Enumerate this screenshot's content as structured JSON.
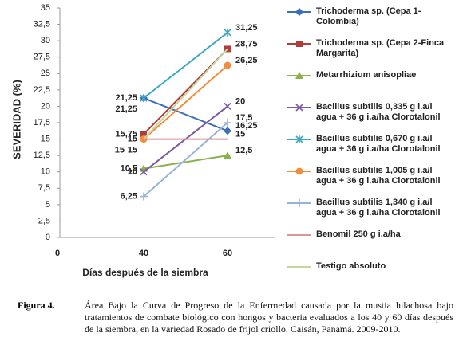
{
  "chart_data": {
    "type": "line",
    "y_label": "SEVERIDAD (%)",
    "x_label": "Días después de la siembra",
    "categories": [
      "0",
      "40",
      "60"
    ],
    "ylim": [
      0,
      35
    ],
    "yticks": [
      0,
      {
        "value": 2.5,
        "label": "2,5"
      },
      5,
      {
        "value": 7.5,
        "label": "7,5"
      },
      10,
      {
        "value": 12.5,
        "label": "12,5"
      },
      15,
      {
        "value": 17.5,
        "label": "17,5"
      },
      20,
      {
        "value": 22.5,
        "label": "22,5"
      },
      25,
      {
        "value": 27.5,
        "label": "27,5"
      },
      30,
      {
        "value": 32.5,
        "label": "32,5"
      },
      35
    ],
    "grid": false,
    "series": [
      {
        "name": "Trichoderma sp. (Cepa 1-Colombia)",
        "color": "#3b6fb6",
        "marker": "diamond",
        "values": [
          null,
          21.25,
          16.25
        ],
        "value_labels": [
          null,
          "21,25",
          "16,25"
        ]
      },
      {
        "name": "Trichoderma sp. (Cepa 2-Finca Margarita)",
        "color": "#b13c3a",
        "marker": "square",
        "values": [
          null,
          15.75,
          28.75
        ],
        "value_labels": [
          null,
          "15,75",
          "28,75"
        ]
      },
      {
        "name": "Metarrhizium anisopliae",
        "color": "#8cb04a",
        "marker": "triangle",
        "values": [
          null,
          10.5,
          12.5
        ],
        "value_labels": [
          null,
          "10,5",
          "12,5"
        ]
      },
      {
        "name": "Bacillus subtilis 0,335 g i.a/l agua + 36 g i.a/ha Clorotalonil",
        "color": "#7b5ba7",
        "marker": "x",
        "values": [
          null,
          10,
          20
        ],
        "value_labels": [
          null,
          "10",
          "20"
        ]
      },
      {
        "name": "Bacillus subtilis 0,670 g i.a/l agua + 36 g i.a/ha Clorotalonil",
        "color": "#3aaac4",
        "marker": "asterisk",
        "values": [
          null,
          21.25,
          31.25
        ],
        "value_labels": [
          null,
          "21,25",
          "31,25"
        ]
      },
      {
        "name": "Bacillus subtilis 1,005 g i.a/l agua + 36 g i.a/ha Clorotalonil",
        "color": "#f28e3b",
        "marker": "circle",
        "values": [
          null,
          15,
          26.25
        ],
        "value_labels": [
          null,
          "15",
          "26,25"
        ]
      },
      {
        "name": "Bacillus subtilis 1,340 g i.a/l agua + 36 g i.a/ha Clorotalonil",
        "color": "#95b3dc",
        "marker": "plus",
        "values": [
          null,
          6.25,
          17.5
        ],
        "value_labels": [
          null,
          "6,25",
          "17,5"
        ]
      },
      {
        "name": "Benomil 250 g i.a/ha",
        "color": "#d99694",
        "marker": "none",
        "values": [
          null,
          15,
          15
        ],
        "value_labels": [
          null,
          "15",
          "15"
        ]
      },
      {
        "name": "Testigo absoluto",
        "color": "#c3d69b",
        "marker": "none",
        "values": [
          null,
          15,
          28.75
        ],
        "value_labels": [
          null,
          "15",
          null
        ]
      }
    ]
  },
  "caption": {
    "label": "Figura 4.",
    "text": "Área Bajo la Curva de Progreso de la Enfermedad causada por la mustia hilachosa bajo tratamientos de combate biológico con hongos y bacteria evaluados a los 40 y 60 días después de la siembra, en la variedad Rosado de frijol criollo. Caisán, Panamá. 2009-2010."
  }
}
